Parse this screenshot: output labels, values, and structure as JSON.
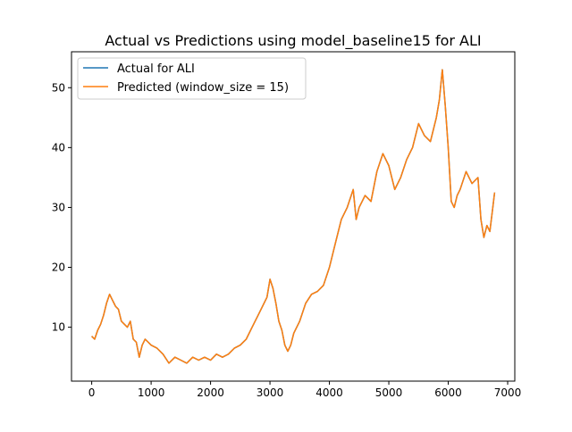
{
  "chart_data": {
    "type": "line",
    "title": "Actual vs Predictions using model_baseline15 for ALI",
    "xlabel": "",
    "ylabel": "",
    "xlim": [
      -340,
      7120
    ],
    "ylim": [
      1,
      56
    ],
    "x_ticks": [
      0,
      1000,
      2000,
      3000,
      4000,
      5000,
      6000,
      7000
    ],
    "y_ticks": [
      10,
      20,
      30,
      40,
      50
    ],
    "grid": false,
    "legend": {
      "placement": "top-left"
    },
    "series": [
      {
        "name": "Actual for ALI",
        "color": "#1f77b4",
        "x": [
          0,
          50,
          100,
          150,
          200,
          250,
          300,
          350,
          400,
          450,
          500,
          550,
          600,
          650,
          700,
          750,
          800,
          850,
          900,
          950,
          1000,
          1100,
          1200,
          1300,
          1400,
          1500,
          1600,
          1700,
          1800,
          1900,
          2000,
          2100,
          2200,
          2300,
          2400,
          2500,
          2600,
          2700,
          2800,
          2900,
          2950,
          3000,
          3050,
          3100,
          3150,
          3200,
          3250,
          3300,
          3350,
          3400,
          3500,
          3600,
          3700,
          3800,
          3900,
          4000,
          4100,
          4200,
          4300,
          4400,
          4450,
          4500,
          4600,
          4700,
          4800,
          4900,
          5000,
          5100,
          5200,
          5300,
          5400,
          5500,
          5600,
          5700,
          5800,
          5850,
          5900,
          5950,
          6000,
          6050,
          6100,
          6150,
          6200,
          6300,
          6400,
          6500,
          6550,
          6600,
          6650,
          6700,
          6750,
          6780
        ],
        "y": [
          8.5,
          8.0,
          9.5,
          10.5,
          12.0,
          14.0,
          15.5,
          14.5,
          13.5,
          13.0,
          11.0,
          10.5,
          10.0,
          11.0,
          8.0,
          7.5,
          5.0,
          7.0,
          8.0,
          7.5,
          7.0,
          6.5,
          5.5,
          4.0,
          5.0,
          4.5,
          4.0,
          5.0,
          4.5,
          5.0,
          4.5,
          5.5,
          5.0,
          5.5,
          6.5,
          7.0,
          8.0,
          10.0,
          12.0,
          14.0,
          15.0,
          18.0,
          16.5,
          14.0,
          11.0,
          9.5,
          7.0,
          6.0,
          7.0,
          9.0,
          11.0,
          14.0,
          15.5,
          16.0,
          17.0,
          20.0,
          24.0,
          28.0,
          30.0,
          33.0,
          28.0,
          30.0,
          32.0,
          31.0,
          36.0,
          39.0,
          37.0,
          33.0,
          35.0,
          38.0,
          40.0,
          44.0,
          42.0,
          41.0,
          45.0,
          48.0,
          53.0,
          47.0,
          40.0,
          31.0,
          30.0,
          32.0,
          33.0,
          36.0,
          34.0,
          35.0,
          28.0,
          25.0,
          27.0,
          26.0,
          30.0,
          32.5
        ]
      },
      {
        "name": "Predicted (window_size = 15)",
        "color": "#ff7f0e",
        "x": [
          0,
          50,
          100,
          150,
          200,
          250,
          300,
          350,
          400,
          450,
          500,
          550,
          600,
          650,
          700,
          750,
          800,
          850,
          900,
          950,
          1000,
          1100,
          1200,
          1300,
          1400,
          1500,
          1600,
          1700,
          1800,
          1900,
          2000,
          2100,
          2200,
          2300,
          2400,
          2500,
          2600,
          2700,
          2800,
          2900,
          2950,
          3000,
          3050,
          3100,
          3150,
          3200,
          3250,
          3300,
          3350,
          3400,
          3500,
          3600,
          3700,
          3800,
          3900,
          4000,
          4100,
          4200,
          4300,
          4400,
          4450,
          4500,
          4600,
          4700,
          4800,
          4900,
          5000,
          5100,
          5200,
          5300,
          5400,
          5500,
          5600,
          5700,
          5800,
          5850,
          5900,
          5950,
          6000,
          6050,
          6100,
          6150,
          6200,
          6300,
          6400,
          6500,
          6550,
          6600,
          6650,
          6700,
          6750,
          6780
        ],
        "y": [
          8.5,
          8.0,
          9.5,
          10.5,
          12.0,
          14.0,
          15.5,
          14.5,
          13.5,
          13.0,
          11.0,
          10.5,
          10.0,
          11.0,
          8.0,
          7.5,
          5.0,
          7.0,
          8.0,
          7.5,
          7.0,
          6.5,
          5.5,
          4.0,
          5.0,
          4.5,
          4.0,
          5.0,
          4.5,
          5.0,
          4.5,
          5.5,
          5.0,
          5.5,
          6.5,
          7.0,
          8.0,
          10.0,
          12.0,
          14.0,
          15.0,
          18.0,
          16.5,
          14.0,
          11.0,
          9.5,
          7.0,
          6.0,
          7.0,
          9.0,
          11.0,
          14.0,
          15.5,
          16.0,
          17.0,
          20.0,
          24.0,
          28.0,
          30.0,
          33.0,
          28.0,
          30.0,
          32.0,
          31.0,
          36.0,
          39.0,
          37.0,
          33.0,
          35.0,
          38.0,
          40.0,
          44.0,
          42.0,
          41.0,
          45.0,
          48.0,
          53.0,
          47.0,
          40.0,
          31.0,
          30.0,
          32.0,
          33.0,
          36.0,
          34.0,
          35.0,
          28.0,
          25.0,
          27.0,
          26.0,
          30.0,
          32.5
        ]
      }
    ]
  }
}
